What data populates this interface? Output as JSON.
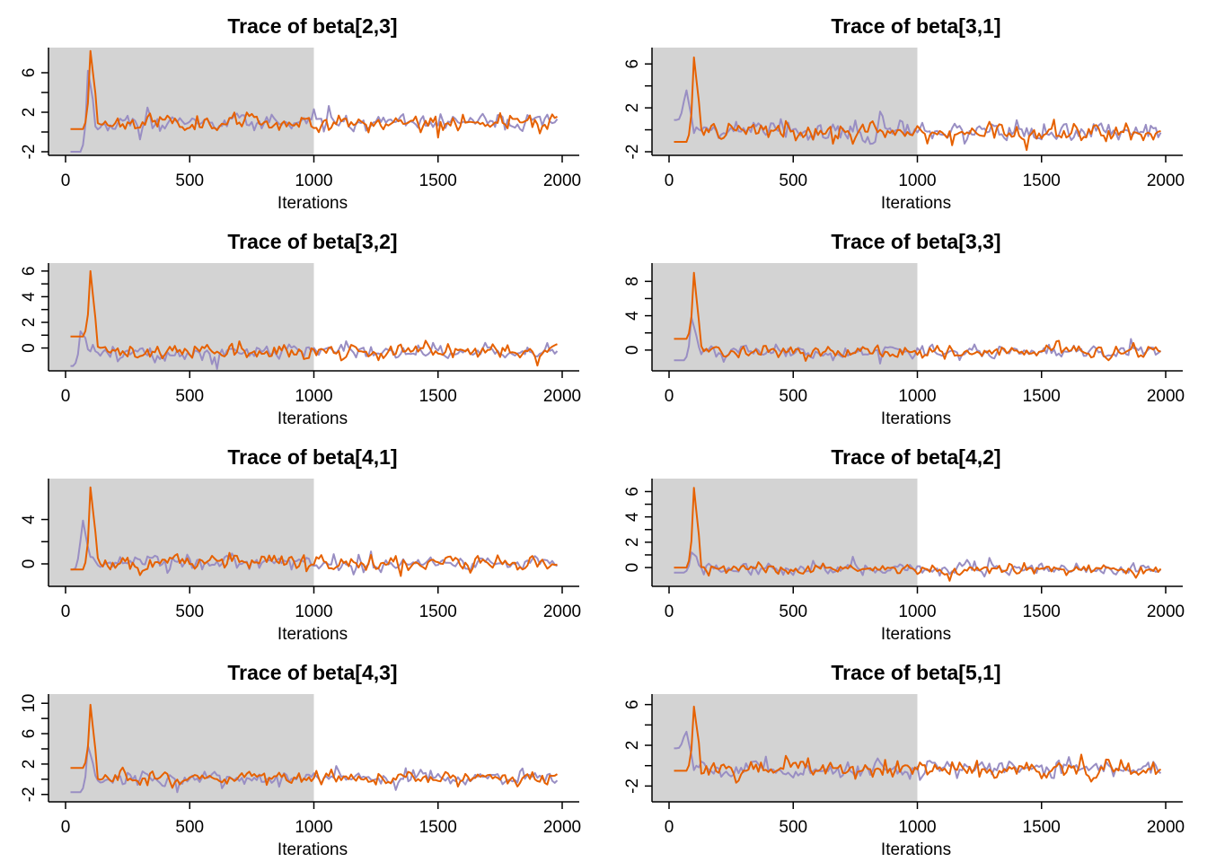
{
  "chart_data": [
    {
      "type": "line",
      "title": "Trace of  beta[2,3]",
      "xlabel": "Iterations",
      "xlim": [
        0,
        2000
      ],
      "ylim": [
        -2,
        8
      ],
      "burnin_end": 1000,
      "xticks": [
        0,
        500,
        1000,
        1500,
        2000
      ],
      "yticks": [
        -2,
        2,
        6
      ],
      "ytick_labels": [
        "-2",
        "2",
        "6"
      ],
      "colors": [
        "#e66101",
        "#998ec3"
      ],
      "chain1": {
        "start": 0.3,
        "spike_at": 100,
        "spike_peak": 8.2,
        "mean": 1.0,
        "sd": 0.38,
        "seed": 11
      },
      "chain2": {
        "start": -2.0,
        "spike_at": 90,
        "spike_peak": 6.2,
        "mean": 1.0,
        "sd": 0.38,
        "seed": 12
      }
    },
    {
      "type": "line",
      "title": "Trace of  beta[3,1]",
      "xlabel": "Iterations",
      "xlim": [
        0,
        2000
      ],
      "ylim": [
        -2,
        7
      ],
      "burnin_end": 1000,
      "xticks": [
        0,
        500,
        1000,
        1500,
        2000
      ],
      "yticks": [
        -2,
        2,
        6
      ],
      "ytick_labels": [
        "-2",
        "2",
        "6"
      ],
      "colors": [
        "#e66101",
        "#998ec3"
      ],
      "chain1": {
        "start": -1.1,
        "spike_at": 100,
        "spike_peak": 6.6,
        "mean": -0.2,
        "sd": 0.4,
        "seed": 21
      },
      "chain2": {
        "start": 0.9,
        "spike_at": 65,
        "spike_peak": 4.2,
        "mean": -0.2,
        "sd": 0.4,
        "seed": 22
      }
    },
    {
      "type": "line",
      "title": "Trace of  beta[3,2]",
      "xlabel": "Iterations",
      "xlim": [
        0,
        2000
      ],
      "ylim": [
        -1.5,
        6.2
      ],
      "burnin_end": 1000,
      "xticks": [
        0,
        500,
        1000,
        1500,
        2000
      ],
      "yticks": [
        0,
        2,
        4,
        6
      ],
      "ytick_labels": [
        "0",
        "2",
        "4",
        "6"
      ],
      "colors": [
        "#e66101",
        "#998ec3"
      ],
      "chain1": {
        "start": 0.9,
        "spike_at": 100,
        "spike_peak": 6.0,
        "mean": -0.3,
        "sd": 0.28,
        "seed": 31
      },
      "chain2": {
        "start": -1.4,
        "spike_at": 60,
        "spike_peak": 1.3,
        "mean": -0.3,
        "sd": 0.28,
        "seed": 32
      }
    },
    {
      "type": "line",
      "title": "Trace of  beta[3,3]",
      "xlabel": "Iterations",
      "xlim": [
        0,
        2000
      ],
      "ylim": [
        -2,
        9.5
      ],
      "burnin_end": 1000,
      "xticks": [
        0,
        500,
        1000,
        1500,
        2000
      ],
      "yticks": [
        0,
        4,
        8
      ],
      "ytick_labels": [
        "0",
        "4",
        "8"
      ],
      "colors": [
        "#e66101",
        "#998ec3"
      ],
      "chain1": {
        "start": 1.3,
        "spike_at": 100,
        "spike_peak": 9.0,
        "mean": -0.2,
        "sd": 0.4,
        "seed": 41
      },
      "chain2": {
        "start": -1.2,
        "spike_at": 90,
        "spike_peak": 3.8,
        "mean": -0.2,
        "sd": 0.4,
        "seed": 42
      }
    },
    {
      "type": "line",
      "title": "Trace of  beta[4,1]",
      "xlabel": "Iterations",
      "xlim": [
        0,
        2000
      ],
      "ylim": [
        -1.7,
        7.2
      ],
      "burnin_end": 1000,
      "xticks": [
        0,
        500,
        1000,
        1500,
        2000
      ],
      "yticks": [
        0,
        4
      ],
      "ytick_labels": [
        "0",
        "4"
      ],
      "colors": [
        "#e66101",
        "#998ec3"
      ],
      "chain1": {
        "start": -0.5,
        "spike_at": 100,
        "spike_peak": 6.9,
        "mean": 0.1,
        "sd": 0.32,
        "seed": 51
      },
      "chain2": {
        "start": -0.5,
        "spike_at": 65,
        "spike_peak": 4.5,
        "mean": 0.1,
        "sd": 0.32,
        "seed": 52
      }
    },
    {
      "type": "line",
      "title": "Trace of  beta[4,2]",
      "xlabel": "Iterations",
      "xlim": [
        0,
        2000
      ],
      "ylim": [
        -1.2,
        6.6
      ],
      "burnin_end": 1000,
      "xticks": [
        0,
        500,
        1000,
        1500,
        2000
      ],
      "yticks": [
        0,
        2,
        4,
        6
      ],
      "ytick_labels": [
        "0",
        "2",
        "4",
        "6"
      ],
      "colors": [
        "#e66101",
        "#998ec3"
      ],
      "chain1": {
        "start": 0.0,
        "spike_at": 100,
        "spike_peak": 6.3,
        "mean": -0.1,
        "sd": 0.22,
        "seed": 61
      },
      "chain2": {
        "start": -0.4,
        "spike_at": 90,
        "spike_peak": 1.2,
        "mean": -0.1,
        "sd": 0.22,
        "seed": 62
      }
    },
    {
      "type": "line",
      "title": "Trace of  beta[4,3]",
      "xlabel": "Iterations",
      "xlim": [
        0,
        2000
      ],
      "ylim": [
        -2.5,
        10.5
      ],
      "burnin_end": 1000,
      "xticks": [
        0,
        500,
        1000,
        1500,
        2000
      ],
      "yticks": [
        -2,
        2,
        6,
        10
      ],
      "ytick_labels": [
        "-2",
        "2",
        "6",
        "10"
      ],
      "colors": [
        "#e66101",
        "#998ec3"
      ],
      "chain1": {
        "start": 1.5,
        "spike_at": 100,
        "spike_peak": 9.8,
        "mean": 0.2,
        "sd": 0.45,
        "seed": 71
      },
      "chain2": {
        "start": -1.7,
        "spike_at": 90,
        "spike_peak": 4.4,
        "mean": 0.2,
        "sd": 0.45,
        "seed": 72
      }
    },
    {
      "type": "line",
      "title": "Trace of  beta[5,1]",
      "xlabel": "Iterations",
      "xlim": [
        0,
        2000
      ],
      "ylim": [
        -3.2,
        6.5
      ],
      "burnin_end": 1000,
      "xticks": [
        0,
        500,
        1000,
        1500,
        2000
      ],
      "yticks": [
        -2,
        2,
        6
      ],
      "ytick_labels": [
        "-2",
        "2",
        "6"
      ],
      "colors": [
        "#e66101",
        "#998ec3"
      ],
      "chain1": {
        "start": -0.5,
        "spike_at": 100,
        "spike_peak": 5.8,
        "mean": -0.3,
        "sd": 0.42,
        "seed": 81
      },
      "chain2": {
        "start": 1.7,
        "spike_at": 65,
        "spike_peak": 3.9,
        "mean": -0.3,
        "sd": 0.42,
        "seed": 82
      }
    }
  ]
}
